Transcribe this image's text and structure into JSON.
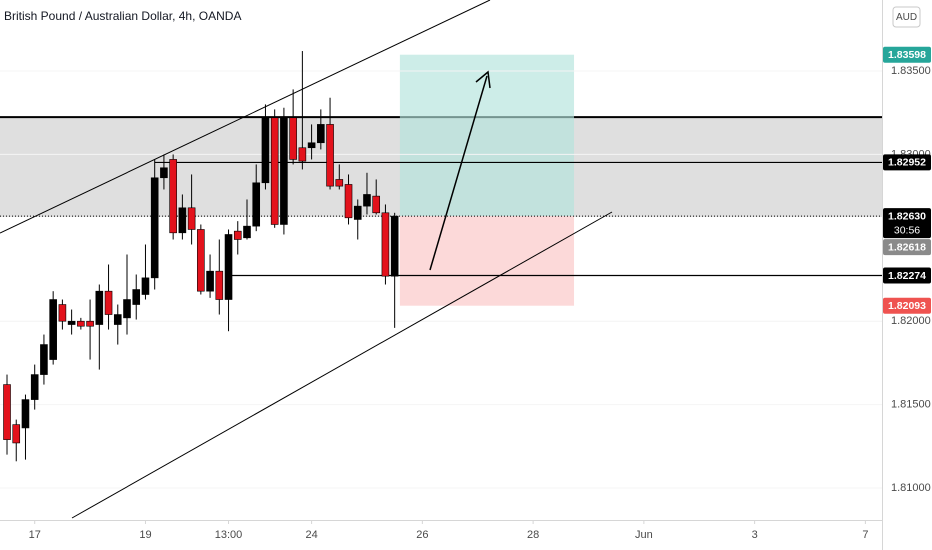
{
  "header": {
    "title": "British Pound / Australian Dollar, 4h, OANDA",
    "currency": "AUD"
  },
  "chart_data": {
    "type": "candlestick",
    "color_up": "#000000",
    "color_down": "#e3121c",
    "x": [
      0,
      1,
      2,
      3,
      4,
      5,
      6,
      7,
      8,
      9,
      10,
      11,
      12,
      13,
      14,
      15,
      16,
      17,
      18,
      19,
      20,
      21,
      22,
      23,
      24,
      25,
      26,
      27,
      28,
      29,
      30,
      31,
      32,
      33,
      34,
      35,
      36,
      37,
      38,
      39,
      40,
      41,
      42
    ],
    "open": [
      1.8162,
      1.8138,
      1.8136,
      1.8153,
      1.8168,
      1.8177,
      1.821,
      1.8198,
      1.82,
      1.82,
      1.8198,
      1.8218,
      1.8198,
      1.8202,
      1.821,
      1.8216,
      1.8226,
      1.8286,
      1.8297,
      1.8253,
      1.8268,
      1.8255,
      1.8218,
      1.823,
      1.8213,
      1.8254,
      1.825,
      1.8257,
      1.8283,
      1.8322,
      1.8258,
      1.8322,
      1.8304,
      1.8304,
      1.8307,
      1.8318,
      1.8285,
      1.8282,
      1.8261,
      1.8269,
      1.8275,
      1.8265,
      1.8227
    ],
    "high": [
      1.8168,
      1.8141,
      1.8156,
      1.8174,
      1.8192,
      1.8218,
      1.8213,
      1.8207,
      1.8202,
      1.8213,
      1.8222,
      1.8234,
      1.821,
      1.824,
      1.8228,
      1.8246,
      1.8297,
      1.83,
      1.83,
      1.8276,
      1.8288,
      1.8258,
      1.824,
      1.8249,
      1.8255,
      1.826,
      1.8273,
      1.8294,
      1.833,
      1.8327,
      1.8328,
      1.8339,
      1.8362,
      1.8318,
      1.8327,
      1.8334,
      1.8294,
      1.8288,
      1.8273,
      1.8289,
      1.8285,
      1.827,
      1.8265
    ],
    "low": [
      1.812,
      1.8116,
      1.8117,
      1.8147,
      1.8162,
      1.8174,
      1.8195,
      1.8192,
      1.8195,
      1.8177,
      1.8171,
      1.8195,
      1.8186,
      1.8192,
      1.8201,
      1.8213,
      1.8219,
      1.8279,
      1.8249,
      1.8249,
      1.8246,
      1.8216,
      1.8214,
      1.8204,
      1.8194,
      1.824,
      1.8249,
      1.8254,
      1.8279,
      1.8256,
      1.8252,
      1.8294,
      1.8291,
      1.8297,
      1.8303,
      1.8279,
      1.8279,
      1.8258,
      1.8249,
      1.8264,
      1.8264,
      1.8222,
      1.8196
    ],
    "close": [
      1.8129,
      1.8127,
      1.8153,
      1.8168,
      1.8186,
      1.8213,
      1.82,
      1.82,
      1.8197,
      1.8197,
      1.8218,
      1.8204,
      1.8204,
      1.8213,
      1.8219,
      1.8226,
      1.8286,
      1.8292,
      1.8253,
      1.8268,
      1.8255,
      1.8218,
      1.823,
      1.8213,
      1.8252,
      1.8249,
      1.8257,
      1.8283,
      1.8322,
      1.8258,
      1.8322,
      1.8297,
      1.8296,
      1.8307,
      1.8318,
      1.8281,
      1.8281,
      1.8262,
      1.8269,
      1.8276,
      1.8265,
      1.8227,
      1.8263
    ],
    "xlim": [
      -0.76,
      94.8
    ],
    "xticks": [
      {
        "value": 3,
        "label": "17"
      },
      {
        "value": 15,
        "label": "19"
      },
      {
        "value": 24,
        "label": "13:00"
      },
      {
        "value": 33,
        "label": "24"
      },
      {
        "value": 45,
        "label": "26"
      },
      {
        "value": 57,
        "label": "28"
      },
      {
        "value": 69,
        "label": "Jun"
      },
      {
        "value": 81,
        "label": "3"
      },
      {
        "value": 93,
        "label": "7"
      }
    ],
    "ylim": [
      1.80808,
      1.83926
    ],
    "yticks": [
      {
        "value": 1.835,
        "label": "1.83500"
      },
      {
        "value": 1.83,
        "label": "1.83000"
      },
      {
        "value": 1.82,
        "label": "1.82000"
      },
      {
        "value": 1.815,
        "label": "1.81500"
      },
      {
        "value": 1.81,
        "label": "1.81000"
      }
    ],
    "zone": {
      "top": 1.83224,
      "bottom": 1.82625,
      "color": "#d9d9d9"
    },
    "levels": [
      {
        "price": 1.82952,
        "from": 16
      },
      {
        "price": 1.82274,
        "from": 24
      }
    ],
    "position": {
      "from": 43,
      "to": 61,
      "target_color": "#b2e3dc",
      "stop_color": "#fbd0d0"
    },
    "price_labels": [
      {
        "value": 1.83598,
        "color": "#26a69a"
      },
      {
        "value": 1.82952,
        "color": "#000000"
      },
      {
        "value": 1.8263,
        "label": "1.82630",
        "color": "#000000",
        "countdown": "30:56"
      },
      {
        "value": 1.82618,
        "color": "#8a8a8a"
      },
      {
        "value": 1.82274,
        "color": "#000000"
      },
      {
        "value": 1.82093,
        "color": "#ef5350"
      }
    ]
  }
}
